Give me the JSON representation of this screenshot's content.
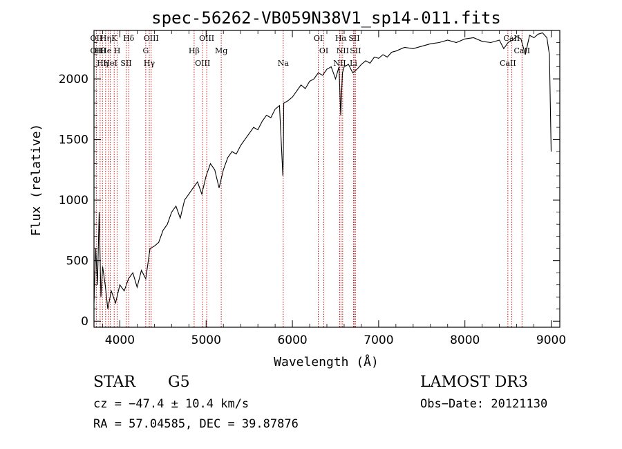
{
  "chart_data": {
    "type": "line",
    "title": "spec-56262-VB059N38V1_sp14-011.fits",
    "xlabel": "Wavelength (Å)",
    "ylabel": "Flux (relative)",
    "xlim": [
      3700,
      9100
    ],
    "ylim": [
      -50,
      2400
    ],
    "x_ticks": [
      4000,
      5000,
      6000,
      7000,
      8000,
      9000
    ],
    "y_ticks": [
      0,
      500,
      1000,
      1500,
      2000
    ],
    "series": [
      {
        "name": "flux",
        "x": [
          3700,
          3720,
          3740,
          3760,
          3780,
          3800,
          3830,
          3860,
          3900,
          3950,
          4000,
          4050,
          4100,
          4150,
          4200,
          4250,
          4300,
          4350,
          4400,
          4450,
          4500,
          4550,
          4600,
          4650,
          4700,
          4750,
          4800,
          4850,
          4900,
          4950,
          5000,
          5050,
          5100,
          5150,
          5200,
          5250,
          5300,
          5350,
          5400,
          5450,
          5500,
          5550,
          5600,
          5650,
          5700,
          5750,
          5800,
          5850,
          5890,
          5895,
          5900,
          5950,
          6000,
          6050,
          6100,
          6150,
          6200,
          6250,
          6300,
          6350,
          6400,
          6450,
          6500,
          6540,
          6560,
          6580,
          6600,
          6650,
          6700,
          6750,
          6800,
          6850,
          6900,
          6950,
          7000,
          7050,
          7100,
          7150,
          7200,
          7300,
          7400,
          7500,
          7600,
          7700,
          7800,
          7900,
          8000,
          8100,
          8200,
          8300,
          8400,
          8450,
          8500,
          8550,
          8600,
          8650,
          8700,
          8750,
          8800,
          8850,
          8900,
          8950,
          8980,
          9000
        ],
        "y": [
          150,
          600,
          300,
          900,
          200,
          450,
          300,
          100,
          250,
          150,
          300,
          250,
          350,
          400,
          280,
          420,
          350,
          600,
          620,
          650,
          750,
          800,
          900,
          950,
          850,
          1000,
          1050,
          1100,
          1150,
          1050,
          1200,
          1300,
          1250,
          1100,
          1250,
          1350,
          1400,
          1380,
          1450,
          1500,
          1550,
          1600,
          1580,
          1650,
          1700,
          1680,
          1750,
          1780,
          1200,
          1400,
          1800,
          1820,
          1850,
          1900,
          1950,
          1920,
          1980,
          2000,
          2050,
          2030,
          2080,
          2100,
          2000,
          2100,
          1700,
          2050,
          2100,
          2120,
          2050,
          2080,
          2120,
          2150,
          2130,
          2180,
          2170,
          2200,
          2180,
          2220,
          2230,
          2260,
          2250,
          2270,
          2290,
          2300,
          2320,
          2300,
          2330,
          2340,
          2310,
          2300,
          2320,
          2250,
          2300,
          2320,
          2350,
          2330,
          2200,
          2360,
          2340,
          2370,
          2380,
          2340,
          2200,
          1400
        ]
      }
    ],
    "lines": [
      {
        "wl": 3727,
        "labels": [
          "OII",
          "OII"
        ]
      },
      {
        "wl": 3771,
        "labels": [
          "Hθ"
        ]
      },
      {
        "wl": 3798,
        "labels": [
          "Hη"
        ]
      },
      {
        "wl": 3835,
        "labels": [
          "Hη"
        ]
      },
      {
        "wl": 3869,
        "labels": [
          "He I"
        ]
      },
      {
        "wl": 3889,
        "labels": [
          "HeI"
        ]
      },
      {
        "wl": 3934,
        "labels": [
          "K"
        ]
      },
      {
        "wl": 3969,
        "labels": [
          "H"
        ]
      },
      {
        "wl": 4072,
        "labels": [
          "SII"
        ]
      },
      {
        "wl": 4102,
        "labels": [
          "Hδ"
        ]
      },
      {
        "wl": 4300,
        "labels": [
          "G"
        ]
      },
      {
        "wl": 4341,
        "labels": [
          "Hγ"
        ]
      },
      {
        "wl": 4363,
        "labels": [
          "OIII"
        ]
      },
      {
        "wl": 4861,
        "labels": [
          "Hβ"
        ]
      },
      {
        "wl": 4959,
        "labels": [
          "OIII"
        ]
      },
      {
        "wl": 5007,
        "labels": [
          "OIII"
        ]
      },
      {
        "wl": 5175,
        "labels": [
          "Mg"
        ]
      },
      {
        "wl": 5894,
        "labels": [
          "Na"
        ]
      },
      {
        "wl": 6300,
        "labels": [
          "OI"
        ]
      },
      {
        "wl": 6364,
        "labels": [
          "OI"
        ]
      },
      {
        "wl": 6548,
        "labels": [
          "NII"
        ]
      },
      {
        "wl": 6563,
        "labels": [
          "Hα"
        ]
      },
      {
        "wl": 6583,
        "labels": [
          "NII"
        ]
      },
      {
        "wl": 6708,
        "labels": [
          "Li"
        ]
      },
      {
        "wl": 6716,
        "labels": [
          "SII"
        ]
      },
      {
        "wl": 6731,
        "labels": [
          "SII"
        ]
      },
      {
        "wl": 8498,
        "labels": [
          "CaII"
        ]
      },
      {
        "wl": 8542,
        "labels": [
          "CaII"
        ]
      },
      {
        "wl": 8662,
        "labels": [
          "CaII"
        ]
      }
    ]
  },
  "info": {
    "object_class": "STAR",
    "subclass": "G5",
    "survey": "LAMOST DR3",
    "cz": "cz = −47.4 ± 10.4 km/s",
    "obs_date": "Obs−Date: 20121130",
    "coords": "RA =  57.04585, DEC =  39.87876"
  },
  "colors": {
    "spectrum": "#000000",
    "lines": "#cc0000",
    "axes": "#000000",
    "background": "#ffffff"
  }
}
